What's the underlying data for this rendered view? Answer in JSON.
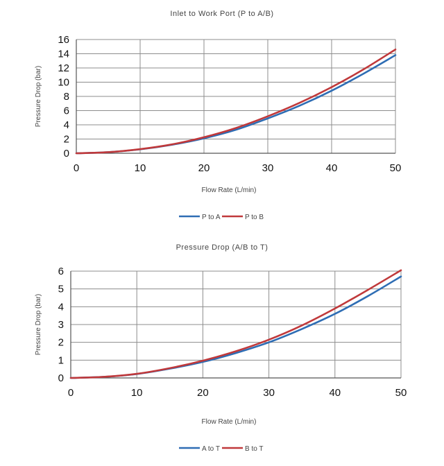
{
  "chart_data": [
    {
      "type": "line",
      "title": "Inlet to Work Port (P to A/B)",
      "xlabel": "Flow Rate (L/min)",
      "ylabel": "Pressure Drop (bar)",
      "xlim": [
        0,
        50
      ],
      "ylim": [
        0,
        16
      ],
      "xticks": [
        0,
        10,
        20,
        30,
        40,
        50
      ],
      "yticks": [
        0,
        2,
        4,
        6,
        8,
        10,
        12,
        14,
        16
      ],
      "grid": true,
      "legend_position": "bottom",
      "x": [
        0,
        5,
        10,
        15,
        20,
        25,
        30,
        35,
        40,
        45,
        50
      ],
      "series": [
        {
          "name": "P to A",
          "color": "#2e6db4",
          "values": [
            0,
            0.15,
            0.55,
            1.2,
            2.1,
            3.3,
            4.9,
            6.7,
            8.8,
            11.2,
            13.8
          ]
        },
        {
          "name": "P to B",
          "color": "#c0393b",
          "values": [
            0,
            0.15,
            0.58,
            1.25,
            2.25,
            3.55,
            5.2,
            7.1,
            9.3,
            11.8,
            14.6
          ]
        }
      ]
    },
    {
      "type": "line",
      "title": "Pressure Drop (A/B to T)",
      "xlabel": "Flow Rate (L/min)",
      "ylabel": "Pressure Drop (bar)",
      "xlim": [
        0,
        50
      ],
      "ylim": [
        0,
        6
      ],
      "xticks": [
        0,
        10,
        20,
        30,
        40,
        50
      ],
      "yticks": [
        0,
        1,
        2,
        3,
        4,
        5,
        6
      ],
      "grid": true,
      "legend_position": "bottom",
      "x": [
        0,
        5,
        10,
        15,
        20,
        25,
        30,
        35,
        40,
        45,
        50
      ],
      "series": [
        {
          "name": "A to T",
          "color": "#2e6db4",
          "values": [
            0,
            0.06,
            0.22,
            0.52,
            0.9,
            1.4,
            2.0,
            2.75,
            3.6,
            4.6,
            5.7
          ]
        },
        {
          "name": "B to T",
          "color": "#c0393b",
          "values": [
            0,
            0.06,
            0.23,
            0.55,
            0.97,
            1.5,
            2.15,
            2.95,
            3.9,
            4.95,
            6.05
          ]
        }
      ]
    }
  ]
}
